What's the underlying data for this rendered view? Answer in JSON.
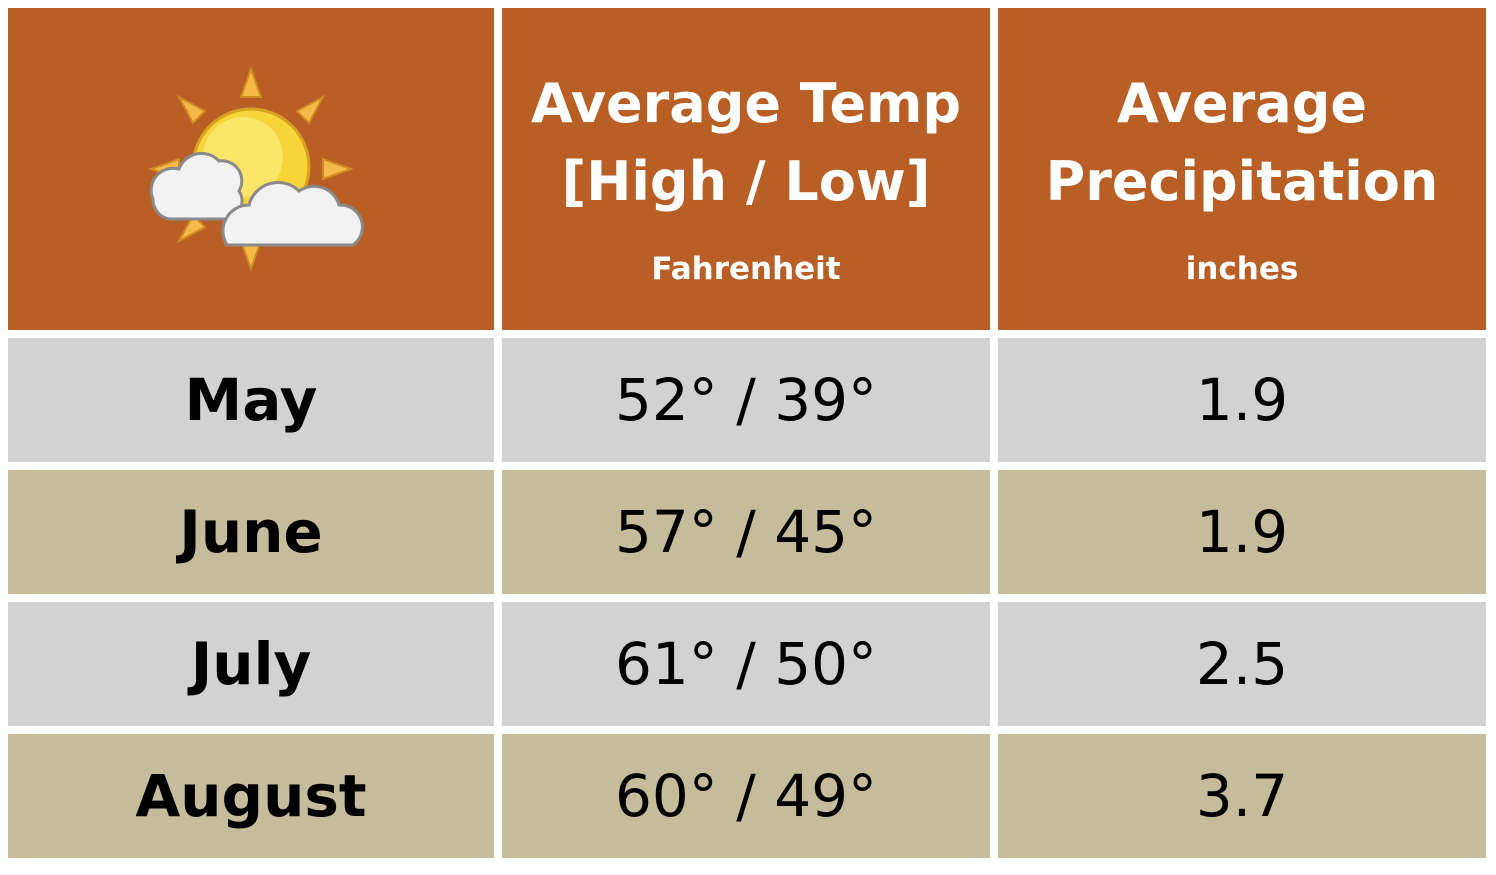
{
  "header": {
    "cells": [
      {
        "title_lines": [
          "Average Temp",
          "[High / Low]"
        ],
        "unit": "Fahrenheit"
      },
      {
        "title_lines": [
          "Average",
          "Precipitation"
        ],
        "unit": "inches"
      }
    ]
  },
  "table": {
    "rows": [
      [
        "May",
        "52° / 39°",
        "1.9"
      ],
      [
        "June",
        "57° / 45°",
        "1.9"
      ],
      [
        "July",
        "61° / 50°",
        "2.5"
      ],
      [
        "August",
        "60° / 49°",
        "3.7"
      ]
    ]
  }
}
